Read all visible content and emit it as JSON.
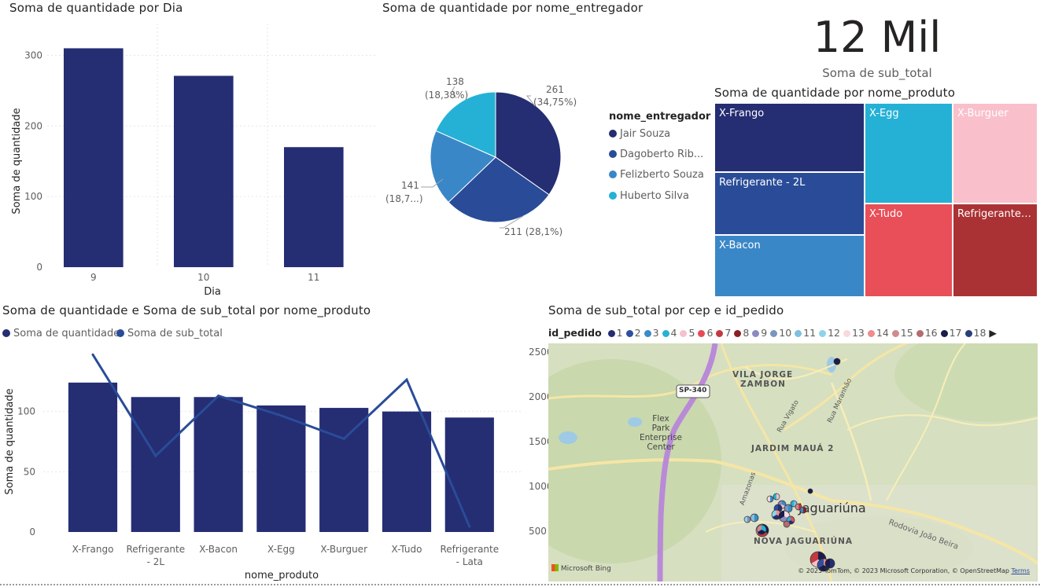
{
  "bar_chart": {
    "title": "Soma de quantidade por Dia",
    "xlabel": "Dia",
    "ylabel": "Soma de quantidade",
    "ticks": [
      "0",
      "100",
      "200",
      "300"
    ]
  },
  "pie_chart": {
    "title": "Soma de quantidade por nome_entregador",
    "legend_title": "nome_entregador",
    "legend": [
      "Jair Souza",
      "Dagoberto Rib...",
      "Felizberto Souza",
      "Huberto Silva"
    ],
    "labels": {
      "jair_1": "261",
      "jair_2": "(34,75%)",
      "dag": "211 (28,1%)",
      "feliz_1": "141",
      "feliz_2": "(18,7...)",
      "hub_1": "138",
      "hub_2": "(18,38%)"
    }
  },
  "kpi": {
    "value": "12 Mil",
    "label": "Soma de sub_total"
  },
  "treemap": {
    "title": "Soma de quantidade por nome_produto",
    "cells": [
      "X-Frango",
      "Refrigerante - 2L",
      "X-Bacon",
      "X-Egg",
      "X-Burguer",
      "X-Tudo",
      "Refrigerante -..."
    ]
  },
  "combo_chart": {
    "title": "Soma de quantidade e Soma de sub_total por nome_produto",
    "legend": [
      "Soma de quantidade",
      "Soma de sub_total"
    ],
    "xlabel": "nome_produto",
    "ylabel": "Soma de quantidade",
    "x_ticks_line1": [
      "X-Frango",
      "Refrigerante",
      "X-Bacon",
      "X-Egg",
      "X-Burguer",
      "X-Tudo",
      "Refrigerante"
    ],
    "x_ticks_line2": [
      "",
      "- 2L",
      "",
      "",
      "",
      "",
      "- Lata"
    ],
    "y_ticks": [
      "0",
      "50",
      "100"
    ]
  },
  "map": {
    "title": "Soma de sub_total por cep e id_pedido",
    "legend_title": "id_pedido",
    "legend_items": [
      "1",
      "2",
      "3",
      "4",
      "5",
      "6",
      "7",
      "8",
      "9",
      "10",
      "11",
      "12",
      "13",
      "14",
      "15",
      "16",
      "17",
      "18"
    ],
    "legend_colors": [
      "#252d73",
      "#2e4fa0",
      "#3a8bc6",
      "#26b2d4",
      "#f6c0cc",
      "#e54c55",
      "#c23a3f",
      "#8c1f24",
      "#8b8bbf",
      "#7a95c0",
      "#7fbfe0",
      "#8fd3e8",
      "#f7d9de",
      "#f08b90",
      "#d08a8e",
      "#b56c70",
      "#1a1d4a",
      "#2a3e7a"
    ],
    "y_ticks": [
      "2500",
      "2000",
      "1500",
      "1000",
      "500"
    ],
    "place_labels": {
      "vila1": "VILA JORGE",
      "vila2": "ZAMBON",
      "flex1": "Flex",
      "flex2": "Park",
      "flex3": "Enterprise",
      "flex4": "Center",
      "jardim": "JARDIM MAUÁ 2",
      "city": "Jaguariúna",
      "nova": "NOVA JAGUARIÚNA",
      "rodovia": "Rodovia João Beira",
      "sp": "SP-340",
      "vigato": "Rua Vigato",
      "maranhao": "Rua Maranhão",
      "amazonas": "Amazonas"
    },
    "bing": "Microsoft Bing",
    "copyright": "© 2023 TomTom, © 2023 Microsoft Corporation, © OpenStreetMap",
    "terms": "Terms"
  },
  "chart_data": [
    {
      "type": "bar",
      "title": "Soma de quantidade por Dia",
      "categories": [
        "9",
        "10",
        "11"
      ],
      "values": [
        310,
        271,
        170
      ],
      "xlabel": "Dia",
      "ylabel": "Soma de quantidade",
      "ylim": [
        0,
        345
      ],
      "color": "#252d73"
    },
    {
      "type": "pie",
      "title": "Soma de quantidade por nome_entregador",
      "categories": [
        "Jair Souza",
        "Dagoberto Rib...",
        "Felizberto Souza",
        "Huberto Silva"
      ],
      "values": [
        261,
        211,
        141,
        138
      ],
      "colors": [
        "#252d73",
        "#2a4c98",
        "#3a87c8",
        "#25b1d6"
      ]
    },
    {
      "type": "treemap",
      "title": "Soma de quantidade por nome_produto",
      "categories": [
        "X-Frango",
        "Refrigerante - 2L",
        "X-Bacon",
        "X-Egg",
        "X-Burguer",
        "X-Tudo",
        "Refrigerante - Lata"
      ],
      "values": [
        124,
        112,
        112,
        105,
        103,
        100,
        95
      ],
      "colors": [
        "#252d73",
        "#2a4c98",
        "#3a87c8",
        "#25b1d6",
        "#f9c0cc",
        "#e84f58",
        "#aa3234"
      ]
    },
    {
      "type": "bar",
      "title": "Soma de quantidade e Soma de sub_total por nome_produto",
      "categories": [
        "X-Frango",
        "Refrigerante - 2L",
        "X-Bacon",
        "X-Egg",
        "X-Burguer",
        "X-Tudo",
        "Refrigerante - Lata"
      ],
      "series": [
        {
          "name": "Soma de quantidade",
          "type": "bar",
          "values": [
            124,
            112,
            112,
            105,
            103,
            100,
            95
          ],
          "axis": "left"
        },
        {
          "name": "Soma de sub_total",
          "type": "line",
          "values": [
            2480,
            1350,
            2020,
            1800,
            1540,
            2200,
            560
          ],
          "axis": "right"
        }
      ],
      "xlabel": "nome_produto",
      "ylabel": "Soma de quantidade",
      "ylim": [
        0,
        150
      ],
      "y2lim": [
        300,
        2600
      ],
      "colors": [
        "#252d73",
        "#2a4c98"
      ]
    }
  ]
}
